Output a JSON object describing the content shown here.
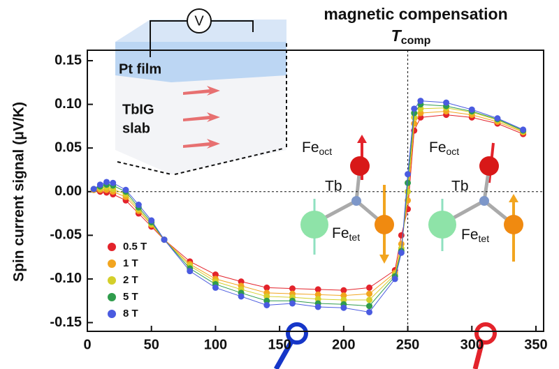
{
  "chart_data": {
    "type": "line",
    "title": "magnetic compensation",
    "ylabel": "Spin current signal (μV/K)",
    "tcomp": {
      "text": "T",
      "sub": "comp",
      "x": 250
    },
    "x": [
      5,
      10,
      15,
      20,
      30,
      40,
      50,
      60,
      80,
      100,
      120,
      140,
      160,
      180,
      200,
      220,
      240,
      245,
      250,
      255,
      260,
      280,
      300,
      320,
      340
    ],
    "series": [
      {
        "name": "0.5 T",
        "color": "#e3232b",
        "values": [
          0.002,
          0.0,
          -0.001,
          -0.003,
          -0.01,
          -0.025,
          -0.04,
          -0.055,
          -0.08,
          -0.095,
          -0.103,
          -0.11,
          -0.111,
          -0.112,
          -0.113,
          -0.11,
          -0.09,
          -0.05,
          -0.02,
          0.07,
          0.085,
          0.088,
          0.085,
          0.078,
          0.066
        ]
      },
      {
        "name": "1 T",
        "color": "#f2a51f",
        "values": [
          0.002,
          0.002,
          0.002,
          0.0,
          -0.006,
          -0.022,
          -0.038,
          -0.055,
          -0.083,
          -0.1,
          -0.108,
          -0.116,
          -0.117,
          -0.118,
          -0.119,
          -0.117,
          -0.093,
          -0.06,
          -0.01,
          0.078,
          0.09,
          0.092,
          0.088,
          0.08,
          0.068
        ]
      },
      {
        "name": "2 T",
        "color": "#d4cf2a",
        "values": [
          0.003,
          0.004,
          0.005,
          0.003,
          -0.003,
          -0.02,
          -0.037,
          -0.055,
          -0.085,
          -0.103,
          -0.112,
          -0.12,
          -0.121,
          -0.123,
          -0.124,
          -0.124,
          -0.095,
          -0.065,
          0.0,
          0.085,
          0.095,
          0.096,
          0.091,
          0.082,
          0.069
        ]
      },
      {
        "name": "5 T",
        "color": "#2f9c4c",
        "values": [
          0.003,
          0.006,
          0.008,
          0.007,
          0.0,
          -0.018,
          -0.035,
          -0.055,
          -0.088,
          -0.106,
          -0.116,
          -0.125,
          -0.125,
          -0.128,
          -0.129,
          -0.131,
          -0.097,
          -0.068,
          0.01,
          0.09,
          0.1,
          0.098,
          0.092,
          0.083,
          0.07
        ]
      },
      {
        "name": "8 T",
        "color": "#4a5be0",
        "values": [
          0.003,
          0.008,
          0.011,
          0.01,
          0.002,
          -0.015,
          -0.033,
          -0.055,
          -0.091,
          -0.11,
          -0.12,
          -0.13,
          -0.128,
          -0.132,
          -0.133,
          -0.138,
          -0.1,
          -0.07,
          0.02,
          0.095,
          0.104,
          0.102,
          0.094,
          0.084,
          0.071
        ]
      }
    ],
    "xlim": [
      0,
      356
    ],
    "xticks": [
      0,
      50,
      100,
      150,
      200,
      250,
      300,
      350
    ],
    "ylim": [
      -0.16,
      0.162
    ],
    "yticks": [
      0.15,
      {
        "value": 0.1,
        "label": "0.10"
      },
      0.05,
      {
        "value": 0,
        "label": "0.00"
      },
      -0.05,
      {
        "value": -0.1,
        "label": "-0.10"
      },
      -0.15
    ],
    "legend": "lower left",
    "inset": {
      "voltmeter": "V",
      "film": "Pt film",
      "slab": [
        "TbIG",
        "slab"
      ]
    },
    "structures": [
      {
        "oct": {
          "text": "Fe",
          "sub": "oct"
        },
        "tb": "Tb",
        "tet": {
          "text": "Fe",
          "sub": "tet"
        }
      },
      {
        "oct": {
          "text": "Fe",
          "sub": "oct"
        },
        "tb": "Tb",
        "tet": {
          "text": "Fe",
          "sub": "tet"
        }
      }
    ]
  }
}
